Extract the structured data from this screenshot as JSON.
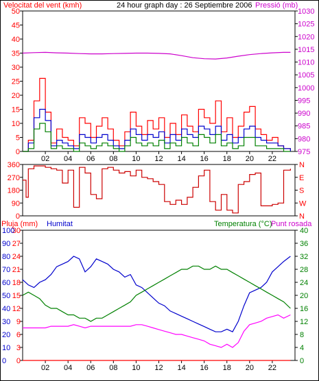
{
  "header": {
    "wind_label": "Velocitat del vent (kmh)",
    "center_title": "24 hour graph day : 26 Septiembre 2006",
    "pressure_label": "Pressió (mb)"
  },
  "labels": {
    "rain": "Pluja (mm)",
    "humidity": "Humitat",
    "temperature": "Temperatura (°C)",
    "dewpoint": "Punt rosada"
  },
  "colors": {
    "wind_gust": "#ff0000",
    "wind_avg": "#0000cc",
    "wind_low": "#008000",
    "pressure": "#cc00cc",
    "direction": "#cc0000",
    "humidity": "#0000cc",
    "temperature": "#008000",
    "dewpoint": "#ff00ff",
    "rain": "#ff0000",
    "axis_red": "#ff0000",
    "axis_blue": "#0000cc",
    "axis_green": "#008000",
    "axis_magenta": "#cc00cc"
  },
  "chart_data": [
    {
      "type": "line",
      "name": "wind_pressure",
      "x_ticks": [
        "02",
        "04",
        "06",
        "08",
        "10",
        "12",
        "14",
        "16",
        "18",
        "20",
        "22"
      ],
      "xlim": [
        0,
        24
      ],
      "y_left": {
        "ticks": [
          0,
          5,
          10,
          15,
          20,
          25,
          30,
          35,
          40,
          45,
          50
        ],
        "ylim": [
          0,
          50
        ]
      },
      "y_right": {
        "ticks": [
          975,
          980,
          985,
          990,
          995,
          1000,
          1005,
          1010,
          1015,
          1020,
          1025,
          1030
        ],
        "ylim": [
          975,
          1030
        ]
      },
      "series": [
        {
          "key": "pressure",
          "x": [
            0,
            1,
            2,
            3,
            4,
            5,
            6,
            7,
            8,
            9,
            10,
            11,
            12,
            13,
            14,
            15,
            16,
            17,
            18,
            19,
            20,
            21,
            22,
            23,
            23.6
          ],
          "values": [
            1013.5,
            1013.7,
            1013.8,
            1013.6,
            1013.5,
            1013.3,
            1013.2,
            1013.2,
            1013.3,
            1013.4,
            1013.5,
            1013.5,
            1013.4,
            1013.2,
            1012.5,
            1011.7,
            1011.3,
            1011.2,
            1011.6,
            1012.3,
            1012.9,
            1013.3,
            1013.6,
            1013.8,
            1013.8
          ]
        },
        {
          "key": "wind_gust",
          "x": [
            0,
            0.5,
            1,
            1.5,
            2,
            2.5,
            3,
            3.5,
            4,
            4.5,
            5,
            5.5,
            6,
            6.5,
            7,
            7.5,
            8,
            8.5,
            9,
            9.5,
            10,
            10.5,
            11,
            11.5,
            12,
            12.5,
            13,
            13.5,
            14,
            14.5,
            15,
            15.5,
            16,
            16.5,
            17,
            17.5,
            18,
            18.5,
            19,
            19.5,
            20,
            20.5,
            21,
            21.5,
            22,
            22.5,
            23,
            23.6
          ],
          "values": [
            0,
            4,
            18,
            26,
            14,
            3,
            8,
            5,
            4,
            2,
            12,
            10,
            5,
            9,
            12,
            8,
            4,
            2,
            7,
            14,
            9,
            6,
            11,
            8,
            12,
            5,
            10,
            6,
            13,
            9,
            7,
            15,
            12,
            10,
            18,
            7,
            12,
            5,
            9,
            14,
            16,
            8,
            6,
            4,
            5,
            2,
            1,
            0
          ]
        },
        {
          "key": "wind_avg",
          "x": [
            0,
            0.5,
            1,
            1.5,
            2,
            2.5,
            3,
            3.5,
            4,
            4.5,
            5,
            5.5,
            6,
            6.5,
            7,
            7.5,
            8,
            8.5,
            9,
            9.5,
            10,
            10.5,
            11,
            11.5,
            12,
            12.5,
            13,
            13.5,
            14,
            14.5,
            15,
            15.5,
            16,
            16.5,
            17,
            17.5,
            18,
            18.5,
            19,
            19.5,
            20,
            20.5,
            21,
            21.5,
            22,
            22.5,
            23,
            23.6
          ],
          "values": [
            0,
            3,
            12,
            15,
            11,
            2,
            4,
            3,
            2,
            1,
            6,
            5,
            3,
            5,
            6,
            4,
            2,
            1,
            4,
            8,
            6,
            4,
            6,
            5,
            7,
            3,
            6,
            4,
            8,
            6,
            5,
            9,
            8,
            6,
            9,
            4,
            6,
            3,
            5,
            8,
            9,
            5,
            4,
            3,
            3,
            2,
            1,
            0
          ]
        },
        {
          "key": "wind_low",
          "x": [
            0,
            0.5,
            1,
            1.5,
            2,
            2.5,
            3,
            3.5,
            4,
            4.5,
            5,
            5.5,
            6,
            6.5,
            7,
            7.5,
            8,
            8.5,
            9,
            9.5,
            10,
            10.5,
            11,
            11.5,
            12,
            12.5,
            13,
            13.5,
            14,
            14.5,
            15,
            15.5,
            16,
            16.5,
            17,
            17.5,
            18,
            18.5,
            19,
            19.5,
            20,
            20.5,
            21,
            21.5,
            22,
            22.5,
            23,
            23.6
          ],
          "values": [
            0,
            1,
            8,
            10,
            7,
            1,
            2,
            1,
            1,
            0,
            3,
            2,
            1,
            2,
            3,
            2,
            1,
            0,
            2,
            5,
            3,
            2,
            3,
            2,
            4,
            1,
            3,
            2,
            5,
            3,
            2,
            6,
            5,
            3,
            6,
            2,
            3,
            1,
            2,
            5,
            5,
            2,
            2,
            1,
            1,
            1,
            0,
            0
          ]
        }
      ]
    },
    {
      "type": "line",
      "name": "wind_direction",
      "x_ticks": [],
      "xlim": [
        0,
        24
      ],
      "y_left": {
        "ticks": [
          0,
          90,
          180,
          270,
          360
        ],
        "ylim": [
          0,
          360
        ]
      },
      "y_right_labels": [
        "N",
        "E",
        "S",
        "W",
        "N"
      ],
      "series": [
        {
          "key": "direction",
          "x": [
            0,
            0.3,
            0.5,
            1,
            1.5,
            2,
            2.5,
            3,
            3.5,
            4,
            4.5,
            5,
            5.5,
            6,
            6.5,
            7,
            7.5,
            8,
            8.5,
            9,
            9.5,
            10,
            10.5,
            11,
            11.5,
            12,
            12.5,
            13,
            13.5,
            14,
            14.5,
            15,
            15.5,
            16,
            16.5,
            17,
            17.5,
            18,
            18.5,
            19,
            19.5,
            20,
            20.5,
            21,
            21.5,
            22,
            22.5,
            23,
            23.6
          ],
          "values": [
            250,
            130,
            330,
            350,
            350,
            340,
            330,
            320,
            230,
            320,
            60,
            340,
            300,
            150,
            120,
            330,
            340,
            320,
            300,
            310,
            280,
            320,
            270,
            260,
            240,
            220,
            100,
            80,
            110,
            80,
            130,
            200,
            280,
            320,
            100,
            40,
            150,
            40,
            20,
            220,
            240,
            290,
            300,
            70,
            70,
            80,
            90,
            320,
            330
          ]
        }
      ]
    },
    {
      "type": "line",
      "name": "humidity_temperature",
      "x_ticks": [
        "02",
        "04",
        "06",
        "08",
        "10",
        "12",
        "14",
        "16",
        "18",
        "20",
        "22"
      ],
      "xlim": [
        0,
        24
      ],
      "y_left_rain": {
        "ticks": [
          0,
          3,
          6,
          9,
          12,
          15,
          18,
          21,
          24,
          27,
          30
        ],
        "ylim": [
          0,
          30
        ]
      },
      "y_left_humidity": {
        "ticks": [
          0,
          10,
          20,
          30,
          40,
          50,
          60,
          70,
          80,
          90,
          100
        ],
        "ylim": [
          0,
          100
        ]
      },
      "y_right": {
        "ticks": [
          0,
          4,
          8,
          12,
          16,
          20,
          24,
          28,
          32,
          36,
          40
        ],
        "ylim": [
          0,
          40
        ]
      },
      "series": [
        {
          "key": "humidity",
          "axis": "humidity",
          "x": [
            0,
            0.5,
            1,
            1.5,
            2,
            2.5,
            3,
            3.5,
            4,
            4.5,
            5,
            5.5,
            6,
            6.5,
            7,
            7.5,
            8,
            8.5,
            9,
            9.5,
            10,
            10.5,
            11,
            11.5,
            12,
            12.5,
            13,
            13.5,
            14,
            14.5,
            15,
            15.5,
            16,
            16.5,
            17,
            17.5,
            18,
            18.5,
            19,
            19.5,
            20,
            20.5,
            21,
            21.5,
            22,
            22.5,
            23,
            23.6
          ],
          "values": [
            62,
            58,
            56,
            60,
            62,
            66,
            72,
            74,
            76,
            80,
            78,
            68,
            72,
            78,
            76,
            74,
            70,
            68,
            64,
            66,
            58,
            56,
            52,
            48,
            44,
            42,
            38,
            36,
            34,
            32,
            30,
            28,
            26,
            24,
            22,
            22,
            24,
            22,
            30,
            42,
            52,
            54,
            56,
            60,
            68,
            72,
            76,
            80
          ]
        },
        {
          "key": "temperature",
          "axis": "right",
          "x": [
            0,
            0.5,
            1,
            1.5,
            2,
            2.5,
            3,
            3.5,
            4,
            4.5,
            5,
            5.5,
            6,
            6.5,
            7,
            7.5,
            8,
            8.5,
            9,
            9.5,
            10,
            10.5,
            11,
            11.5,
            12,
            12.5,
            13,
            13.5,
            14,
            14.5,
            15,
            15.5,
            16,
            16.5,
            17,
            17.5,
            18,
            18.5,
            19,
            19.5,
            20,
            20.5,
            21,
            21.5,
            22,
            22.5,
            23,
            23.6
          ],
          "values": [
            20,
            21,
            20,
            19,
            17,
            16,
            16,
            15,
            14,
            14,
            13,
            13,
            12,
            13,
            13,
            14,
            15,
            16,
            17,
            18,
            20,
            21,
            22,
            23,
            24,
            25,
            26,
            27,
            28,
            28,
            29,
            29,
            28,
            28,
            29,
            28,
            28,
            27,
            26,
            25,
            24,
            23,
            22,
            21,
            20,
            19,
            18,
            16
          ]
        },
        {
          "key": "dewpoint",
          "axis": "right",
          "x": [
            0,
            0.5,
            1,
            1.5,
            2,
            2.5,
            3,
            3.5,
            4,
            4.5,
            5,
            5.5,
            6,
            6.5,
            7,
            7.5,
            8,
            8.5,
            9,
            9.5,
            10,
            10.5,
            11,
            11.5,
            12,
            12.5,
            13,
            13.5,
            14,
            14.5,
            15,
            15.5,
            16,
            16.5,
            17,
            17.5,
            18,
            18.5,
            19,
            19.5,
            20,
            20.5,
            21,
            21.5,
            22,
            22.5,
            23,
            23.6
          ],
          "values": [
            10,
            10,
            10,
            10,
            10,
            10.5,
            10.5,
            10.5,
            10.5,
            11,
            10.5,
            10,
            10.5,
            10.5,
            10.5,
            10.5,
            10.5,
            10.5,
            10.5,
            10.5,
            11,
            11,
            10.5,
            10,
            9.5,
            9,
            8.5,
            8,
            8,
            7.5,
            7,
            6.5,
            6,
            5,
            4.5,
            4,
            5,
            4,
            5.5,
            9,
            11,
            11.5,
            12,
            13,
            13.5,
            14,
            13,
            14
          ]
        },
        {
          "key": "rain",
          "axis": "rain",
          "x": [
            0,
            23.6
          ],
          "values": [
            0,
            0
          ]
        }
      ]
    }
  ]
}
